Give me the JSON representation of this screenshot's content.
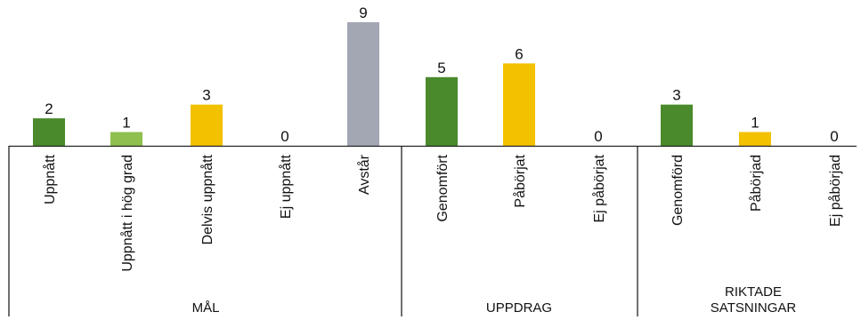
{
  "chart_data": {
    "type": "bar",
    "ylim": [
      0,
      9
    ],
    "grid": false,
    "legend": "none",
    "categories": [
      "Uppnått",
      "Uppnått i hög grad",
      "Delvis uppnått",
      "Ej uppnått",
      "Avstår",
      "Genomfört",
      "Påbörjat",
      "Ej påbörjat",
      "Genomförd",
      "Påbörjad",
      "Ej påbörjad"
    ],
    "values": [
      2,
      1,
      3,
      0,
      9,
      5,
      6,
      0,
      3,
      1,
      0
    ],
    "value_labels": [
      "2",
      "1",
      "3",
      "0",
      "9",
      "5",
      "6",
      "0",
      "3",
      "1",
      "0"
    ],
    "bar_colors": [
      "#4a8a2c",
      "#8fbf4e",
      "#f2c100",
      "#f2c100",
      "#a3a7b4",
      "#4a8a2c",
      "#f2c100",
      "#f2c100",
      "#4a8a2c",
      "#f2c100",
      "#f2c100"
    ],
    "groups": [
      {
        "label_lines": [
          "MÅL"
        ],
        "start": 0,
        "end": 4
      },
      {
        "label_lines": [
          "UPPDRAG"
        ],
        "start": 5,
        "end": 7
      },
      {
        "label_lines": [
          "RIKTADE",
          "SATSNINGAR"
        ],
        "start": 8,
        "end": 10
      }
    ]
  }
}
